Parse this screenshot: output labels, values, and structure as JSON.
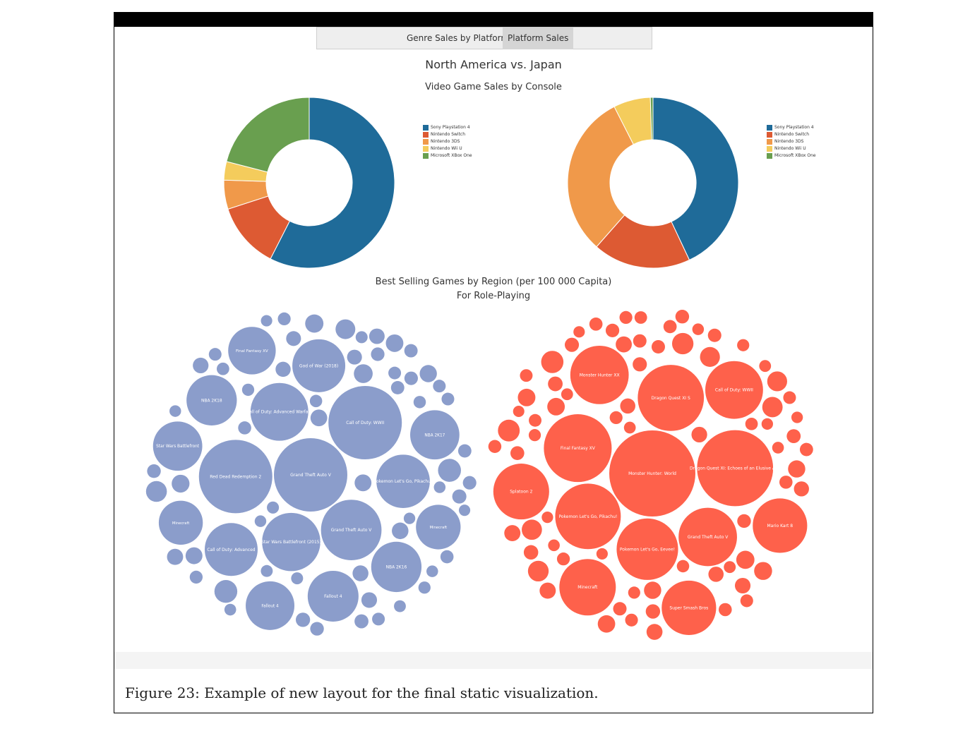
{
  "tabs": [
    {
      "label": "Genre Sales by Platform",
      "active": false
    },
    {
      "label": "Platform Sales",
      "active": true
    }
  ],
  "titles": {
    "main": "North America vs. Japan",
    "donut_subtitle": "Video Game Sales by Console",
    "bubble_title": "Best Selling Games by Region (per 100 000 Capita)",
    "bubble_subtitle": "For Role-Playing"
  },
  "caption": "Figure 23: Example of new layout for the final static visualization.",
  "colors": {
    "ps4": "#1f6b99",
    "switch": "#dd5a33",
    "3ds": "#f0994a",
    "wiiu": "#f4cc5c",
    "xboxone": "#699f4f",
    "bubble_na": "#8b9dcb",
    "bubble_jp": "#fe614b"
  },
  "chart_data": [
    {
      "type": "pie",
      "donut": true,
      "categories": [
        "Sony Playstation 4",
        "Nintendo Switch",
        "Nintendo 3DS",
        "Nintendo Wii U",
        "Microsoft XBox One"
      ],
      "values": [
        57.5,
        12.5,
        5.5,
        3.5,
        21
      ],
      "legend": "right"
    },
    {
      "type": "pie",
      "donut": true,
      "categories": [
        "Sony Playstation 4",
        "Nintendo Switch",
        "Nintendo 3DS",
        "Nintendo Wii U",
        "Microsoft XBox One"
      ],
      "values": [
        43,
        18.5,
        31,
        7,
        0.5
      ],
      "legend": "right"
    },
    {
      "type": "scatter",
      "kind": "packed-bubble",
      "region": "left",
      "items": [
        {
          "name": "Grand Theft Auto V",
          "value": 100
        },
        {
          "name": "Red Dead Redemption 2",
          "value": 100
        },
        {
          "name": "Call of Duty: WWII",
          "value": 100
        },
        {
          "name": "Grand Theft Auto V",
          "value": 68
        },
        {
          "name": "Star Wars Battlefront (2015)",
          "value": 63
        },
        {
          "name": "Call of Duty: Advanced Warfare",
          "value": 62
        },
        {
          "name": "Pokemon Let's Go, Pikachu!",
          "value": 53
        },
        {
          "name": "Call of Duty: Advanced",
          "value": 52
        },
        {
          "name": "God of War (2018)",
          "value": 52
        },
        {
          "name": "Fallout 4",
          "value": 48
        },
        {
          "name": "NBA 2K18",
          "value": 47
        },
        {
          "name": "NBA 2K16",
          "value": 47
        },
        {
          "name": "NBA 2K17",
          "value": 45
        },
        {
          "name": "Star Wars Battlefront",
          "value": 45
        },
        {
          "name": "Fallout 4",
          "value": 44
        },
        {
          "name": "Final Fantasy XV",
          "value": 42
        },
        {
          "name": "Minecraft",
          "value": 37
        },
        {
          "name": "Minecraft",
          "value": 36
        }
      ]
    },
    {
      "type": "scatter",
      "kind": "packed-bubble",
      "region": "right",
      "items": [
        {
          "name": "Monster Hunter: World",
          "value": 100
        },
        {
          "name": "Dragon Quest XI: Echoes of an Elusive Age",
          "value": 78
        },
        {
          "name": "Final Fantasy XV",
          "value": 62
        },
        {
          "name": "Dragon Quest XI S",
          "value": 59
        },
        {
          "name": "Pokemon Let's Go, Pikachu!",
          "value": 58
        },
        {
          "name": "Pokemon Let's Go, Eevee!",
          "value": 51
        },
        {
          "name": "Grand Theft Auto V",
          "value": 46
        },
        {
          "name": "Monster Hunter XX",
          "value": 46
        },
        {
          "name": "Call of Duty: WWII",
          "value": 45
        },
        {
          "name": "Minecraft",
          "value": 43
        },
        {
          "name": "Splatoon 2",
          "value": 42
        },
        {
          "name": "Mario Kart 8",
          "value": 40
        },
        {
          "name": "Super Smash Bros",
          "value": 40
        }
      ]
    }
  ]
}
